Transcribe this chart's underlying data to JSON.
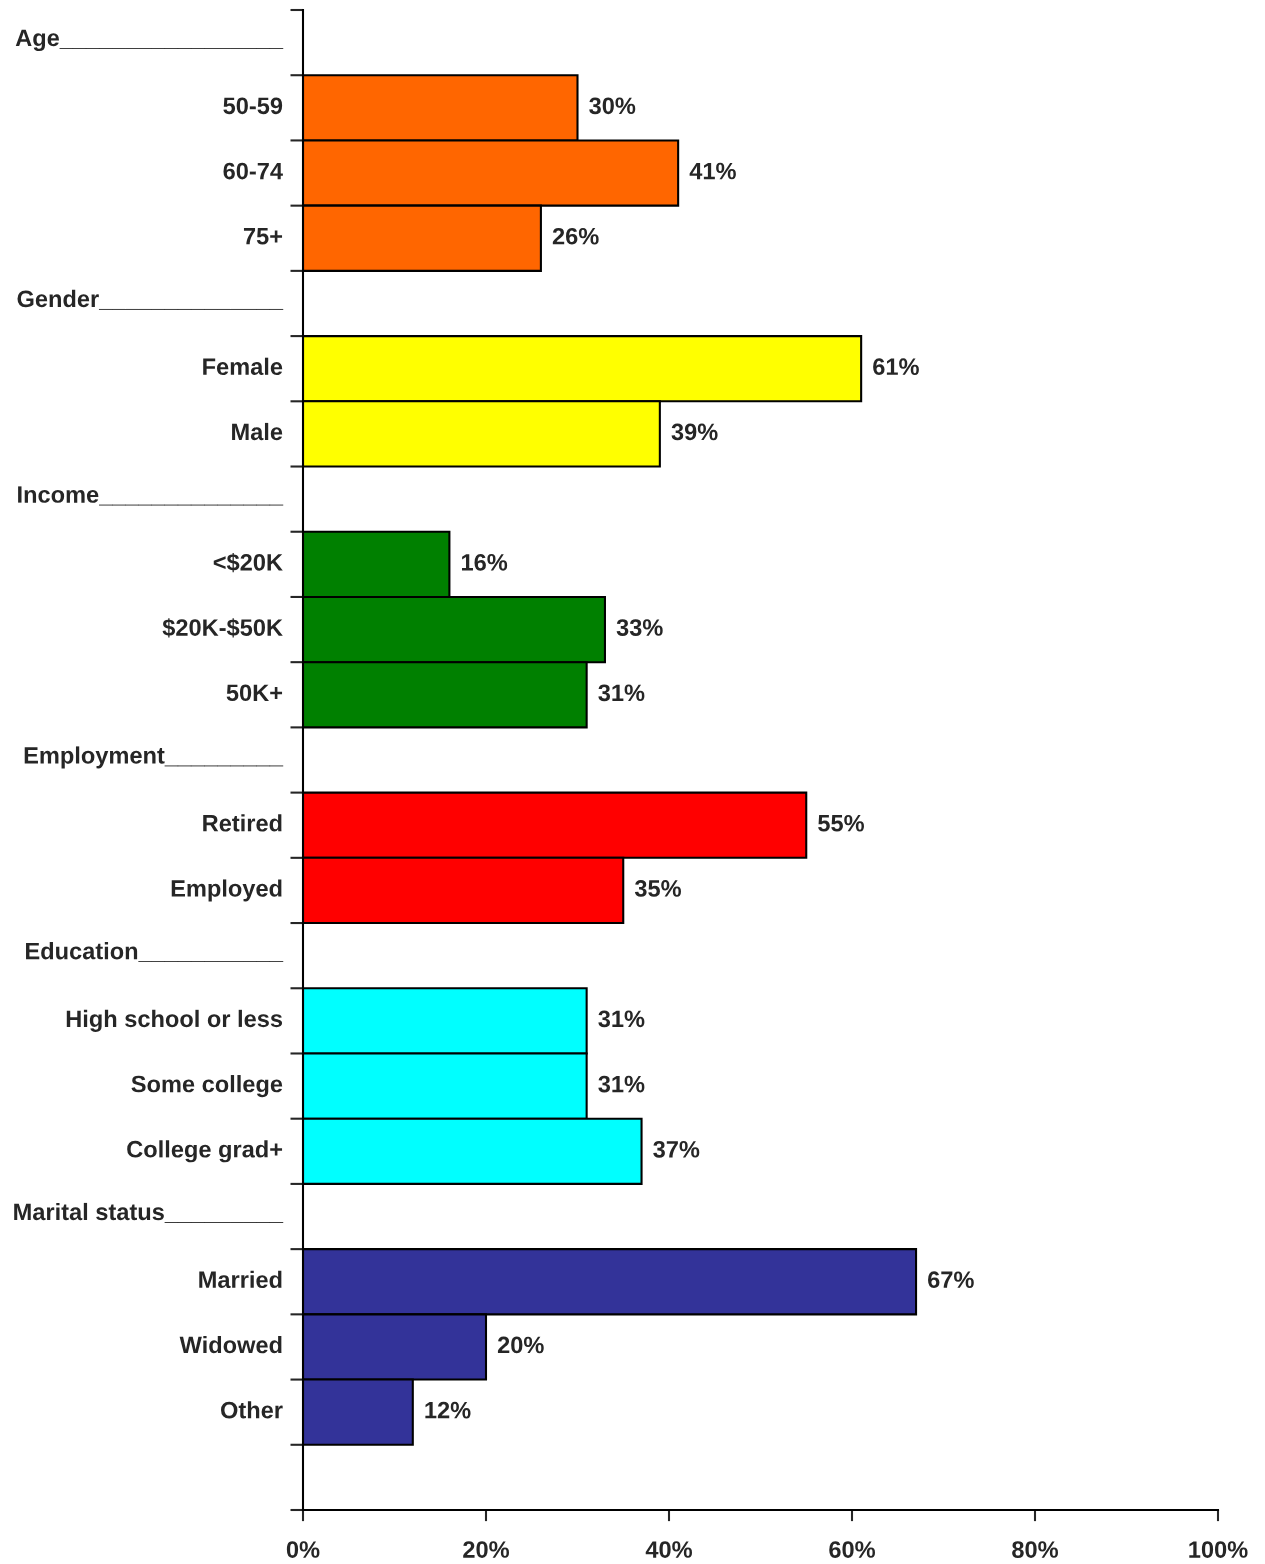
{
  "chart_data": {
    "type": "bar",
    "orientation": "horizontal",
    "categories": [
      "Age_________________",
      "50-59",
      "60-74",
      "75+",
      "Gender______________",
      "Female",
      "Male",
      "Income______________",
      "<$20K",
      "$20K-$50K",
      "50K+",
      "Employment_________",
      "Retired",
      "Employed",
      "Education___________",
      "High school or less",
      "Some college",
      "College grad+",
      "Marital status_________",
      "Married",
      "Widowed",
      "Other",
      null
    ],
    "values": [
      null,
      30,
      41,
      26,
      null,
      61,
      39,
      null,
      16,
      33,
      31,
      null,
      55,
      35,
      null,
      31,
      31,
      37,
      null,
      67,
      20,
      12,
      null
    ],
    "colors": [
      null,
      "#ff6600",
      "#ff6600",
      "#ff6600",
      null,
      "#ffff00",
      "#ffff00",
      null,
      "#008000",
      "#008000",
      "#008000",
      null,
      "#ff0000",
      "#ff0000",
      null,
      "#00ffff",
      "#00ffff",
      "#00ffff",
      null,
      "#333399",
      "#333399",
      "#333399",
      null
    ],
    "value_labels": [
      null,
      "30%",
      "41%",
      "26%",
      null,
      "61%",
      "39%",
      null,
      "16%",
      "33%",
      "31%",
      null,
      "55%",
      "35%",
      null,
      "31%",
      "31%",
      "37%",
      null,
      "67%",
      "20%",
      "12%",
      null
    ],
    "xlim": [
      0,
      100
    ],
    "xticks": [
      {
        "value": 0,
        "label": "0%"
      },
      {
        "value": 20,
        "label": "20%"
      },
      {
        "value": 40,
        "label": "40%"
      },
      {
        "value": 60,
        "label": "60%"
      },
      {
        "value": 80,
        "label": "80%"
      },
      {
        "value": 100,
        "label": "100%"
      }
    ]
  }
}
